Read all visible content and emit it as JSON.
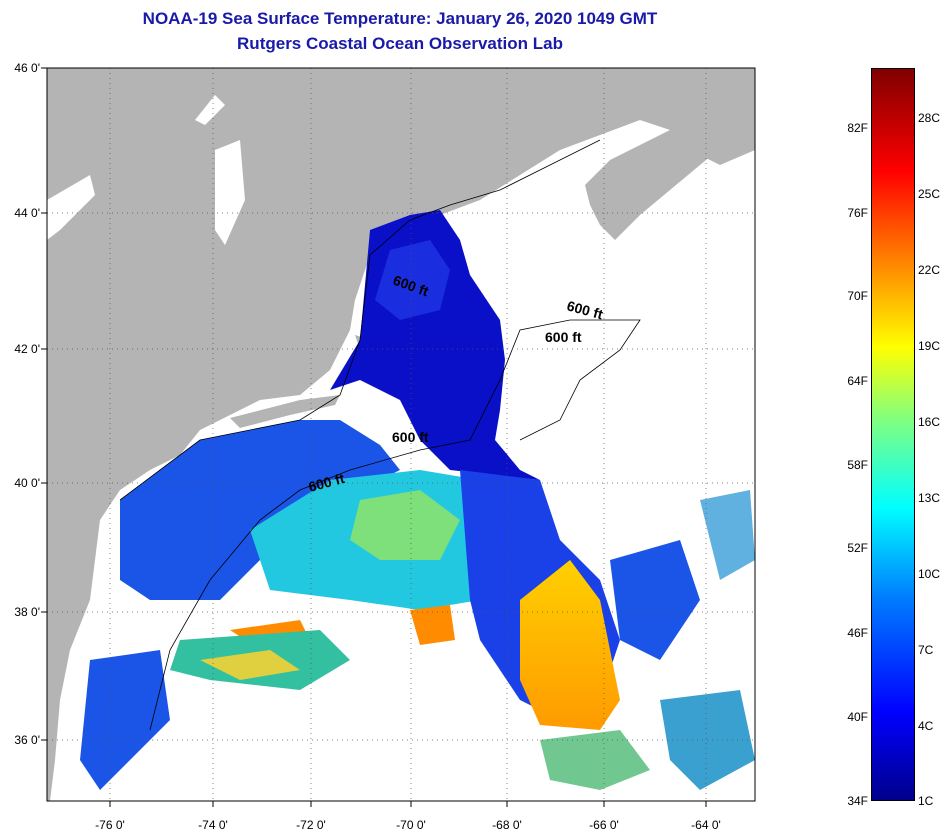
{
  "title": {
    "line1": "NOAA-19 Sea Surface Temperature:  January 26, 2020 1049 GMT",
    "line2": "Rutgers Coastal Ocean Observation Lab"
  },
  "latitude_labels": [
    "46 0'",
    "44 0'",
    "42 0'",
    "40 0'",
    "38 0'",
    "36 0'"
  ],
  "longitude_labels": [
    "-76 0'",
    "-74 0'",
    "-72 0'",
    "-70 0'",
    "-68 0'",
    "-66 0'",
    "-64 0'"
  ],
  "depth_labels": [
    "600 ft",
    "600 ft",
    "600 ft",
    "600 ft",
    "600 ft"
  ],
  "colorbar": {
    "fahrenheit": [
      "82F",
      "76F",
      "70F",
      "64F",
      "58F",
      "52F",
      "46F",
      "40F",
      "34F"
    ],
    "celsius": [
      "28C",
      "25C",
      "22C",
      "19C",
      "16C",
      "13C",
      "10C",
      "7C",
      "4C",
      "1C"
    ]
  },
  "colors": {
    "land": "#b4b4b4",
    "cloud": "#ffffff",
    "title": "#1a1aa8"
  }
}
